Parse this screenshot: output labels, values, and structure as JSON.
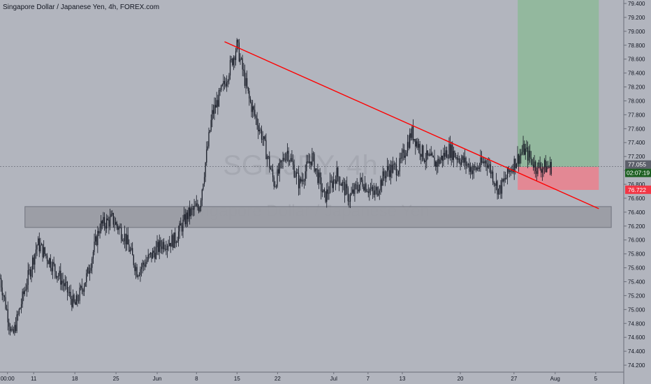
{
  "header": {
    "title": "Singapore Dollar / Japanese Yen, 4h, FOREX.com"
  },
  "watermark": {
    "symbol": "SGDJPY, 4h",
    "name": "Singapore Dollar / Japanese Yen"
  },
  "colors": {
    "background": "#b2b5be",
    "candle": "#131722",
    "trendline": "#ff0000",
    "target_zone": "#8fb89a",
    "stop_zone": "#e8838f",
    "support_zone": "#9a9ca4",
    "price_badge": "#5d606b",
    "timer_badge": "#1b5e20",
    "stop_badge": "#f23645"
  },
  "chart_data": {
    "type": "candlestick",
    "ylim": [
      74.1,
      79.45
    ],
    "y_ticks": [
      "79.400",
      "79.200",
      "79.000",
      "78.800",
      "78.600",
      "78.400",
      "78.200",
      "78.000",
      "77.800",
      "77.600",
      "77.400",
      "77.200",
      "77.000",
      "76.800",
      "76.600",
      "76.400",
      "76.200",
      "76.000",
      "75.800",
      "75.600",
      "75.400",
      "75.200",
      "75.000",
      "74.800",
      "74.600",
      "74.400",
      "74.200"
    ],
    "x_ticks": [
      "00:00",
      "11",
      "18",
      "25",
      "Jun",
      "8",
      "15",
      "22",
      "Jul",
      "7",
      "13",
      "20",
      "27",
      "Aug",
      "5"
    ],
    "price_labels": {
      "last_price": "77.055",
      "countdown": "02:07:19",
      "stop_level": "76.722"
    },
    "price_levels": {
      "last_price": 77.055,
      "stop_level": 76.722
    },
    "trend_path": [
      [
        0,
        75.45
      ],
      [
        2,
        74.6
      ],
      [
        4,
        75.3
      ],
      [
        6,
        75.95
      ],
      [
        8,
        75.7
      ],
      [
        10,
        75.4
      ],
      [
        12,
        75.05
      ],
      [
        14,
        75.5
      ],
      [
        16,
        76.2
      ],
      [
        18,
        76.3
      ],
      [
        20,
        76.05
      ],
      [
        22,
        75.55
      ],
      [
        24,
        75.75
      ],
      [
        26,
        75.95
      ],
      [
        28,
        76.0
      ],
      [
        30,
        76.35
      ],
      [
        32,
        76.5
      ],
      [
        34,
        77.8
      ],
      [
        36,
        78.25
      ],
      [
        38,
        78.8
      ],
      [
        40,
        78.0
      ],
      [
        42,
        77.5
      ],
      [
        44,
        76.8
      ],
      [
        46,
        77.3
      ],
      [
        48,
        76.8
      ],
      [
        50,
        77.2
      ],
      [
        52,
        76.6
      ],
      [
        54,
        76.95
      ],
      [
        56,
        76.6
      ],
      [
        58,
        76.85
      ],
      [
        60,
        76.65
      ],
      [
        62,
        77.0
      ],
      [
        64,
        77.05
      ],
      [
        66,
        77.55
      ],
      [
        68,
        77.2
      ],
      [
        70,
        77.1
      ],
      [
        72,
        77.3
      ],
      [
        74,
        77.15
      ],
      [
        76,
        77.0
      ],
      [
        78,
        77.15
      ],
      [
        80,
        76.7
      ],
      [
        82,
        77.05
      ],
      [
        84,
        77.3
      ],
      [
        86,
        77.05
      ],
      [
        88,
        77.05
      ]
    ],
    "trendline": {
      "start": [
        36,
        78.85
      ],
      "end": [
        96,
        76.45
      ]
    },
    "support_zone": {
      "x_range": [
        4,
        98
      ],
      "y_range": [
        76.18,
        76.48
      ]
    },
    "target_zone": {
      "x_range": [
        83,
        96
      ],
      "y_range": [
        77.05,
        79.45
      ]
    },
    "stop_zone": {
      "x_range": [
        83,
        96
      ],
      "y_range": [
        76.72,
        77.05
      ]
    }
  }
}
